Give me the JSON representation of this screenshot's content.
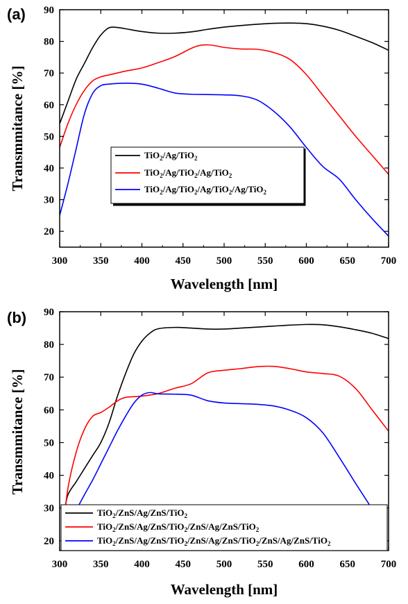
{
  "chart_data": [
    {
      "type": "line",
      "panel_label": "(a)",
      "title": "",
      "xlabel": "Wavelength [nm]",
      "ylabel": "Transmmitance [%]",
      "xlim": [
        300,
        700
      ],
      "ylim": [
        15,
        90
      ],
      "xticks": [
        300,
        350,
        400,
        450,
        500,
        550,
        600,
        650,
        700
      ],
      "yticks": [
        20,
        30,
        40,
        50,
        60,
        70,
        80,
        90
      ],
      "grid": false,
      "legend_position": "center-left",
      "series": [
        {
          "name_parts": [
            [
              "TiO",
              "2",
              "/Ag/TiO",
              "2"
            ]
          ],
          "color": "#000000",
          "x": [
            300,
            310,
            320,
            330,
            340,
            350,
            360,
            370,
            380,
            400,
            420,
            440,
            460,
            480,
            500,
            520,
            540,
            560,
            580,
            600,
            620,
            640,
            660,
            680,
            700
          ],
          "y": [
            54,
            61,
            68,
            73,
            78,
            82,
            84.3,
            84.4,
            84.0,
            83.1,
            82.6,
            82.6,
            83.0,
            83.8,
            84.5,
            85.0,
            85.4,
            85.7,
            85.8,
            85.6,
            84.8,
            83.5,
            81.6,
            79.6,
            77.2
          ]
        },
        {
          "name_parts": [
            [
              "TiO",
              "2",
              "/Ag/TiO",
              "2",
              "/Ag/TiO",
              "2"
            ]
          ],
          "color": "#ff0000",
          "x": [
            300,
            310,
            320,
            330,
            340,
            350,
            360,
            380,
            400,
            420,
            440,
            460,
            470,
            480,
            490,
            500,
            520,
            540,
            560,
            580,
            600,
            620,
            640,
            660,
            680,
            700
          ],
          "y": [
            46.5,
            54,
            60,
            64.5,
            67.5,
            68.8,
            69.4,
            70.6,
            71.6,
            73.3,
            75.2,
            77.8,
            78.7,
            78.9,
            78.6,
            78.1,
            77.6,
            77.5,
            76.5,
            74.3,
            69.5,
            63,
            56.5,
            50,
            44,
            38
          ]
        },
        {
          "name_parts": [
            [
              "TiO",
              "2",
              "/Ag/TiO",
              "2",
              "/Ag/TiO",
              "2",
              "/Ag/TiO",
              "2"
            ]
          ],
          "color": "#0000ff",
          "x": [
            300,
            310,
            320,
            330,
            340,
            350,
            360,
            380,
            400,
            420,
            440,
            460,
            480,
            500,
            520,
            540,
            560,
            580,
            600,
            620,
            640,
            660,
            680,
            700
          ],
          "y": [
            25,
            35,
            46,
            57,
            63.5,
            66.0,
            66.5,
            66.8,
            66.5,
            65.2,
            63.7,
            63.3,
            63.2,
            63.1,
            62.8,
            61.5,
            58,
            53,
            46.5,
            40.5,
            36.5,
            30,
            24,
            18.5
          ]
        }
      ]
    },
    {
      "type": "line",
      "panel_label": "(b)",
      "title": "",
      "xlabel": "Wavelength [nm]",
      "ylabel": "Transmmitance [%]",
      "xlim": [
        300,
        700
      ],
      "ylim": [
        17,
        90
      ],
      "xticks": [
        300,
        350,
        400,
        450,
        500,
        550,
        600,
        650,
        700
      ],
      "yticks": [
        20,
        30,
        40,
        50,
        60,
        70,
        80,
        90
      ],
      "grid": false,
      "legend_position": "bottom",
      "series": [
        {
          "name_parts": [
            [
              "TiO",
              "2",
              "/ZnS/Ag/ZnS/TiO",
              "2"
            ]
          ],
          "color": "#000000",
          "x": [
            305,
            310,
            320,
            330,
            340,
            350,
            360,
            370,
            380,
            390,
            400,
            410,
            420,
            440,
            460,
            480,
            500,
            520,
            540,
            560,
            580,
            600,
            620,
            640,
            660,
            680,
            700
          ],
          "y": [
            28,
            34,
            38,
            42,
            46,
            50,
            56,
            64,
            71,
            77,
            81,
            83.5,
            84.8,
            85.2,
            85.0,
            84.7,
            84.7,
            85.0,
            85.3,
            85.6,
            85.9,
            86.1,
            86.0,
            85.4,
            84.5,
            83.4,
            81.8
          ]
        },
        {
          "name_parts": [
            [
              "TiO",
              "2",
              "/ZnS/Ag/ZnS/TiO",
              "2",
              "/ZnS/Ag/ZnS/TiO",
              "2"
            ]
          ],
          "color": "#ff0000",
          "x": [
            305,
            310,
            320,
            330,
            340,
            350,
            360,
            370,
            380,
            400,
            420,
            440,
            460,
            480,
            500,
            520,
            540,
            560,
            580,
            600,
            620,
            640,
            660,
            680,
            700
          ],
          "y": [
            25,
            36,
            47,
            54,
            58,
            59.2,
            60.8,
            62.7,
            63.8,
            64.2,
            65,
            66.6,
            68,
            71.3,
            72.1,
            72.6,
            73.2,
            73.3,
            72.6,
            71.6,
            71.1,
            70.3,
            66.5,
            60,
            53.5
          ]
        },
        {
          "name_parts": [
            [
              "TiO",
              "2",
              "/ZnS/Ag/ZnS/TiO",
              "2",
              "/ZnS/Ag/ZnS/TiO",
              "2",
              "/ZnS/Ag/ZnS/TiO",
              "2"
            ]
          ],
          "color": "#0000ff",
          "x": [
            315,
            330,
            340,
            350,
            360,
            370,
            380,
            390,
            400,
            410,
            420,
            440,
            460,
            480,
            500,
            520,
            540,
            560,
            580,
            600,
            620,
            640,
            660,
            678
          ],
          "y": [
            27,
            34,
            38.5,
            43.5,
            48.5,
            53.5,
            58,
            62,
            64.5,
            65.3,
            64.9,
            64.8,
            64.5,
            62.8,
            62.1,
            61.9,
            61.7,
            61.2,
            59.9,
            57.6,
            53,
            45.5,
            37.5,
            30.5
          ]
        }
      ]
    }
  ]
}
